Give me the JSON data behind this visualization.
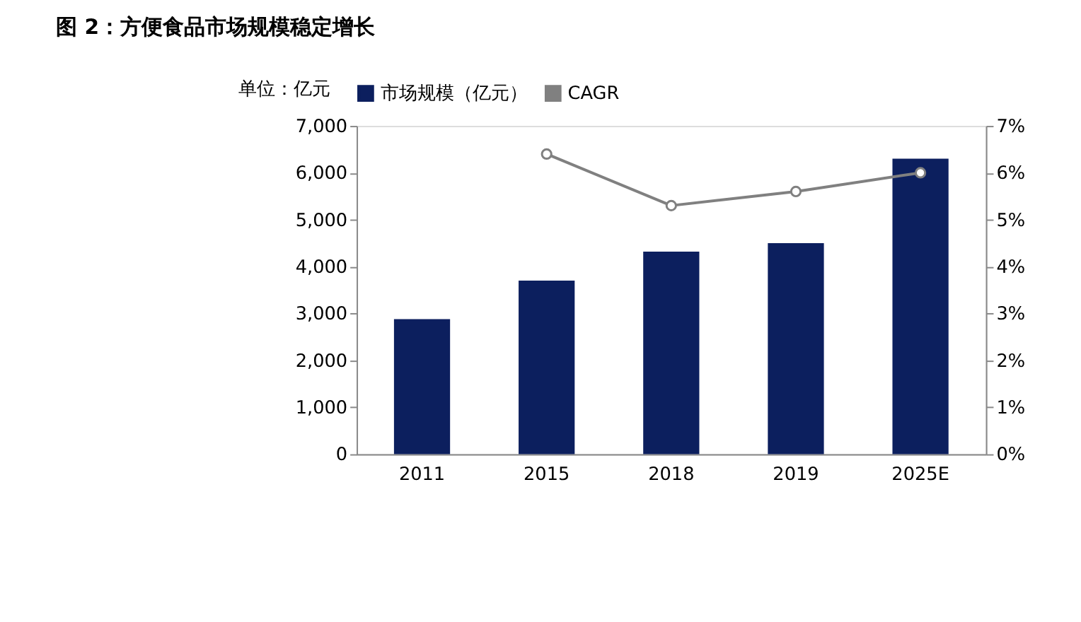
{
  "chart_data": {
    "type": "bar",
    "title": "图 2：方便食品市场规模稳定增长",
    "ylabel": "单位：亿元",
    "categories": [
      "2011",
      "2015",
      "2018",
      "2019",
      "2025E"
    ],
    "series": [
      {
        "name": "市场规模（亿元）",
        "color": "#0c1f5e",
        "values": [
          2880,
          3700,
          4320,
          4500,
          6300
        ]
      },
      {
        "name": "CAGR",
        "type": "line",
        "axis": "y2",
        "color": "#808080",
        "marker": "circle",
        "values": [
          null,
          6.4,
          5.3,
          5.6,
          6.0
        ]
      }
    ],
    "ylim": [
      0,
      7000
    ],
    "yticks": [
      0,
      {
        "value": 1000,
        "label": "1,000"
      },
      {
        "value": 2000,
        "label": "2,000"
      },
      {
        "value": 3000,
        "label": "3,000"
      },
      {
        "value": 4000,
        "label": "4,000"
      },
      {
        "value": 5000,
        "label": "5,000"
      },
      {
        "value": 6000,
        "label": "6,000"
      },
      {
        "value": 7000,
        "label": "7,000"
      }
    ],
    "y2lim": [
      0,
      7
    ],
    "y2ticks": [
      {
        "value": 0,
        "label": "0%"
      },
      {
        "value": 1,
        "label": "1%"
      },
      {
        "value": 2,
        "label": "2%"
      },
      {
        "value": 3,
        "label": "3%"
      },
      {
        "value": 4,
        "label": "4%"
      },
      {
        "value": 5,
        "label": "5%"
      },
      {
        "value": 6,
        "label": "6%"
      },
      {
        "value": 7,
        "label": "7%"
      }
    ],
    "legend": "top",
    "grid": false
  }
}
